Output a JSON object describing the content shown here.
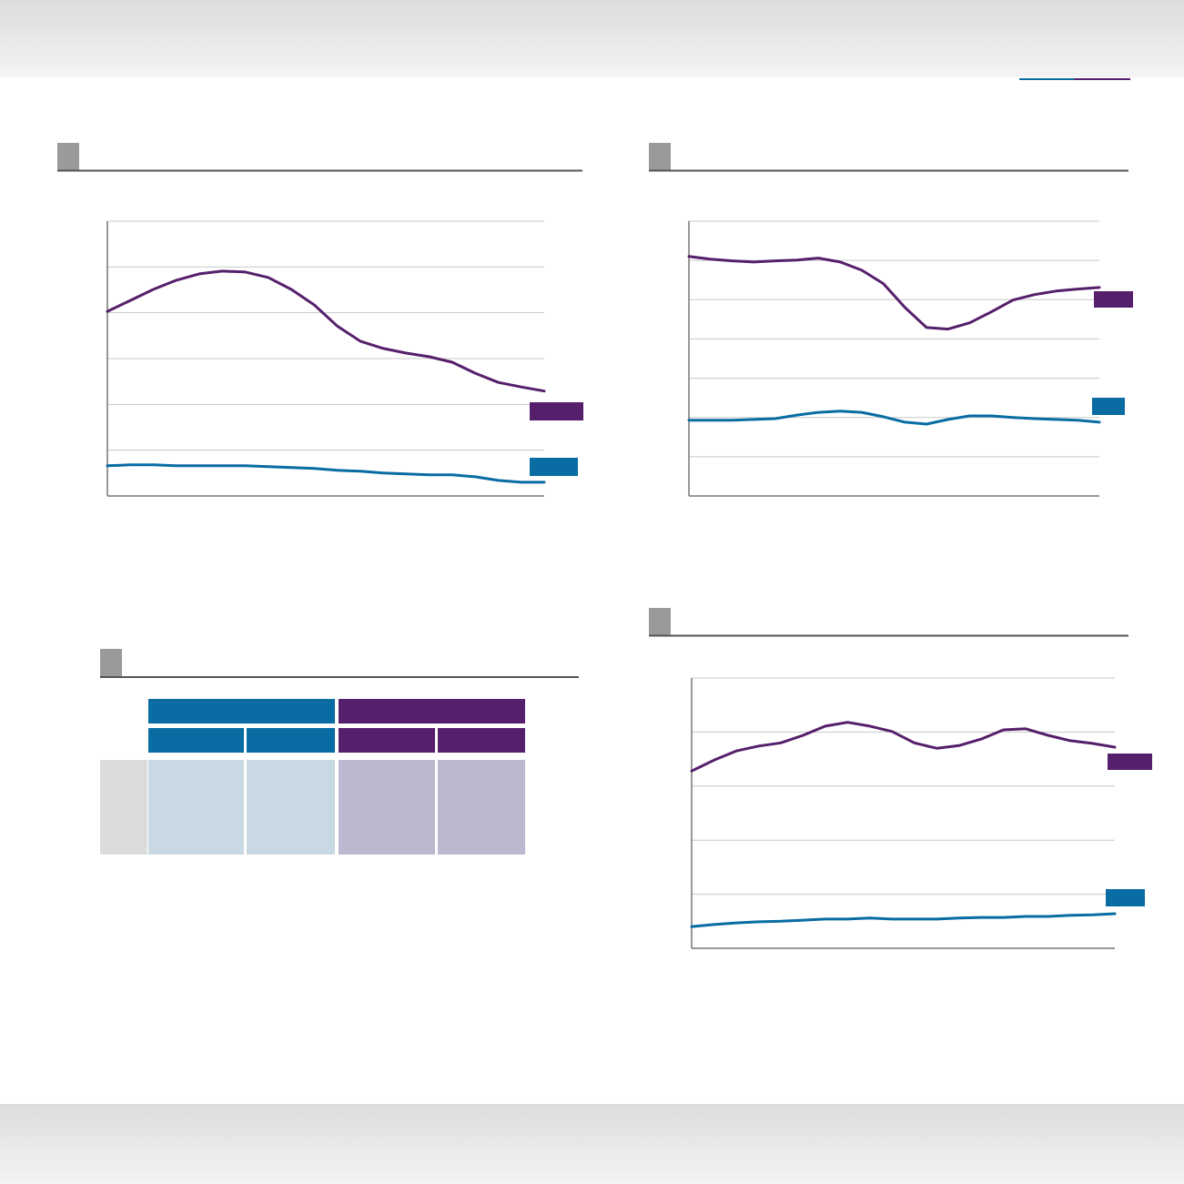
{
  "chart_data": [
    {
      "type": "line",
      "x": [
        0,
        1,
        2,
        3,
        4,
        5,
        6,
        7,
        8,
        9,
        10,
        11,
        12,
        13,
        14,
        15,
        16,
        17,
        18,
        19
      ],
      "xlim": [
        0,
        19
      ],
      "ylim": [
        0,
        6
      ],
      "yticks": [
        0,
        1,
        2,
        3,
        4,
        5,
        6
      ],
      "grid": true,
      "series": [
        {
          "color": "#561f6b",
          "values": [
            4.03,
            4.27,
            4.51,
            4.71,
            4.85,
            4.91,
            4.89,
            4.77,
            4.51,
            4.17,
            3.71,
            3.38,
            3.22,
            3.12,
            3.04,
            2.92,
            2.68,
            2.48,
            2.38,
            2.29
          ]
        },
        {
          "color": "#096ca3",
          "values": [
            0.66,
            0.68,
            0.68,
            0.66,
            0.66,
            0.66,
            0.66,
            0.64,
            0.62,
            0.6,
            0.56,
            0.54,
            0.5,
            0.48,
            0.46,
            0.46,
            0.42,
            0.34,
            0.3,
            0.3
          ]
        }
      ]
    },
    {
      "type": "line",
      "x": [
        0,
        1,
        2,
        3,
        4,
        5,
        6,
        7,
        8,
        9,
        10,
        11,
        12,
        13,
        14,
        15,
        16,
        17,
        18,
        19
      ],
      "xlim": [
        0,
        19
      ],
      "ylim": [
        0,
        7
      ],
      "yticks": [
        0,
        1,
        2,
        3,
        4,
        5,
        6,
        7
      ],
      "grid": true,
      "series": [
        {
          "color": "#561f6b",
          "values": [
            6.1,
            6.03,
            5.99,
            5.96,
            5.99,
            6.01,
            6.06,
            5.96,
            5.75,
            5.41,
            4.8,
            4.29,
            4.25,
            4.41,
            4.69,
            4.99,
            5.13,
            5.22,
            5.27,
            5.31
          ]
        },
        {
          "color": "#096ca3",
          "values": [
            1.93,
            1.93,
            1.93,
            1.95,
            1.97,
            2.06,
            2.13,
            2.16,
            2.13,
            2.02,
            1.88,
            1.83,
            1.95,
            2.04,
            2.04,
            2.0,
            1.97,
            1.95,
            1.93,
            1.88
          ]
        }
      ]
    },
    {
      "type": "line",
      "x": [
        0,
        1,
        2,
        3,
        4,
        5,
        6,
        7,
        8,
        9,
        10,
        11,
        12,
        13,
        14,
        15,
        16,
        17,
        18,
        19
      ],
      "xlim": [
        0,
        19
      ],
      "ylim": [
        0,
        5
      ],
      "yticks": [
        0,
        1,
        2,
        3,
        4,
        5
      ],
      "grid": true,
      "series": [
        {
          "color": "#561f6b",
          "values": [
            3.28,
            3.48,
            3.65,
            3.74,
            3.8,
            3.94,
            4.11,
            4.18,
            4.11,
            4.01,
            3.8,
            3.7,
            3.75,
            3.87,
            4.04,
            4.06,
            3.94,
            3.84,
            3.79,
            3.72
          ]
        },
        {
          "color": "#096ca3",
          "values": [
            0.4,
            0.44,
            0.47,
            0.49,
            0.5,
            0.52,
            0.54,
            0.54,
            0.56,
            0.54,
            0.54,
            0.54,
            0.56,
            0.57,
            0.57,
            0.59,
            0.59,
            0.61,
            0.62,
            0.64
          ]
        }
      ]
    }
  ]
}
